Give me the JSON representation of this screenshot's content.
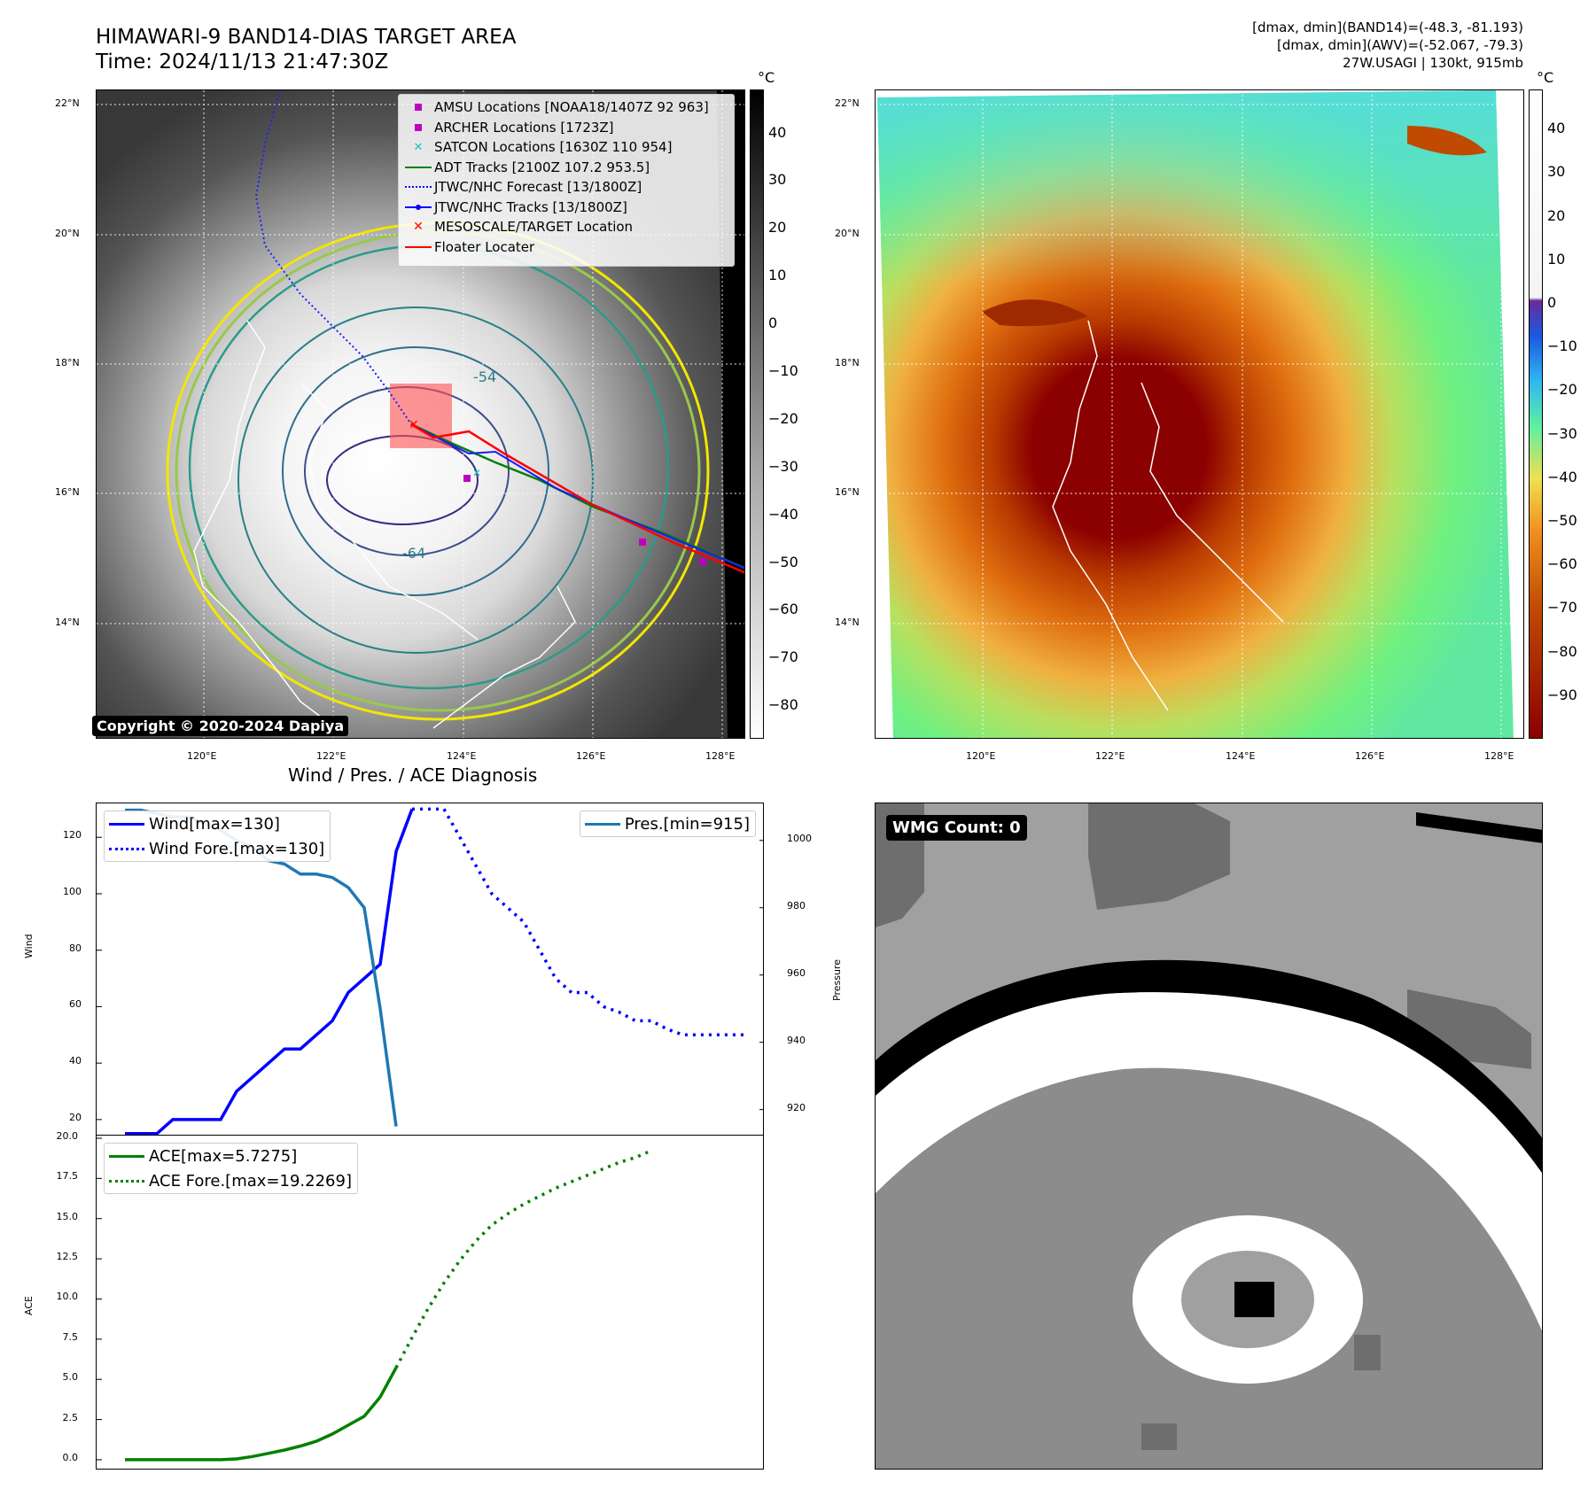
{
  "title": {
    "line1": "HIMAWARI-9 BAND14-DIAS TARGET AREA",
    "line2": "Time: 2024/11/13 21:47:30Z"
  },
  "info": {
    "line1": "[dmax, dmin](BAND14)=(-48.3, -81.193)",
    "line2": "[dmax, dmin](AWV)=(-52.067, -79.3)",
    "line3": "27W.USAGI | 130kt, 915mb"
  },
  "copyright": "Copyright © 2020-2024 Dapiya",
  "map": {
    "lat_labels": [
      "22°N",
      "20°N",
      "18°N",
      "16°N",
      "14°N"
    ],
    "lon_labels": [
      "120°E",
      "122°E",
      "124°E",
      "126°E",
      "128°E"
    ],
    "contour_labels": [
      "-54",
      "-64"
    ],
    "legend": [
      {
        "label": "AMSU Locations [NOAA18/1407Z 92 963]",
        "symbol": "square",
        "color": "#c000c0"
      },
      {
        "label": "ARCHER Locations [1723Z]",
        "symbol": "square",
        "color": "#c000c0"
      },
      {
        "label": "SATCON Locations [1630Z 110 954]",
        "symbol": "x",
        "color": "#20c0c0"
      },
      {
        "label": "ADT Tracks [2100Z 107.2 953.5]",
        "symbol": "line",
        "color": "#008000"
      },
      {
        "label": "JTWC/NHC Forecast [13/1800Z]",
        "symbol": "dotted",
        "color": "#0000ff"
      },
      {
        "label": "JTWC/NHC Tracks [13/1800Z]",
        "symbol": "line-dot",
        "color": "#0000ff"
      },
      {
        "label": "MESOSCALE/TARGET Location",
        "symbol": "x",
        "color": "#ff0000"
      },
      {
        "label": "Floater Locater",
        "symbol": "line",
        "color": "#ff0000"
      }
    ]
  },
  "colorbar_gray": {
    "unit": "°C",
    "ticks": [
      "40",
      "30",
      "20",
      "10",
      "0",
      "−10",
      "−20",
      "−30",
      "−40",
      "−50",
      "−60",
      "−70",
      "−80"
    ]
  },
  "colorbar_color": {
    "unit": "°C",
    "ticks": [
      "40",
      "30",
      "20",
      "10",
      "0",
      "−10",
      "−20",
      "−30",
      "−40",
      "−50",
      "−60",
      "−70",
      "−80",
      "−90"
    ]
  },
  "diag_title": "Wind / Pres. / ACE Diagnosis",
  "wmg_label": "WMG Count: 0",
  "chart_data": [
    {
      "type": "line",
      "title": "Wind / Pres. / ACE Diagnosis",
      "ylabel": "Wind",
      "y2label": "Pressure",
      "ylim": [
        14,
        132
      ],
      "y2lim": [
        912,
        1011
      ],
      "yticks": [
        20,
        40,
        60,
        80,
        100,
        120
      ],
      "y2ticks": [
        920,
        940,
        960,
        980,
        1000
      ],
      "series": [
        {
          "name": "Wind[max=130]",
          "axis": "left",
          "style": "solid",
          "color": "#0000ff",
          "values": [
            15,
            15,
            15,
            20,
            20,
            20,
            20,
            30,
            35,
            40,
            45,
            45,
            50,
            55,
            65,
            70,
            75,
            115,
            130
          ]
        },
        {
          "name": "Wind Fore.[max=130]",
          "axis": "left",
          "style": "dotted",
          "color": "#0000ff",
          "x_start": 18,
          "values": [
            130,
            130,
            130,
            120,
            110,
            100,
            95,
            90,
            80,
            70,
            65,
            65,
            60,
            58,
            55,
            55,
            52,
            50,
            50,
            50,
            50,
            50
          ]
        },
        {
          "name": "Pres.[min=915]",
          "axis": "right",
          "style": "solid",
          "color": "#1f77b4",
          "values": [
            1009,
            1009,
            1008,
            1007,
            1007,
            1005,
            1003,
            1000,
            998,
            994,
            993,
            990,
            990,
            989,
            986,
            980,
            950,
            915
          ]
        }
      ]
    },
    {
      "type": "line",
      "ylabel": "ACE",
      "ylim": [
        -0.5,
        20
      ],
      "yticks": [
        0.0,
        2.5,
        5.0,
        7.5,
        10.0,
        12.5,
        15.0,
        17.5,
        20.0
      ],
      "series": [
        {
          "name": "ACE[max=5.7275]",
          "style": "solid",
          "color": "#008000",
          "values": [
            0,
            0,
            0,
            0,
            0,
            0,
            0,
            0.05,
            0.2,
            0.4,
            0.6,
            0.85,
            1.15,
            1.6,
            2.15,
            2.7,
            3.9,
            5.7275
          ]
        },
        {
          "name": "ACE Fore.[max=19.2269]",
          "style": "dotted",
          "color": "#008000",
          "x_start": 17,
          "values": [
            5.7275,
            7.6,
            9.4,
            11.0,
            12.4,
            13.6,
            14.6,
            15.3,
            15.9,
            16.4,
            16.9,
            17.3,
            17.7,
            18.1,
            18.5,
            18.8,
            19.2269
          ]
        }
      ]
    }
  ]
}
